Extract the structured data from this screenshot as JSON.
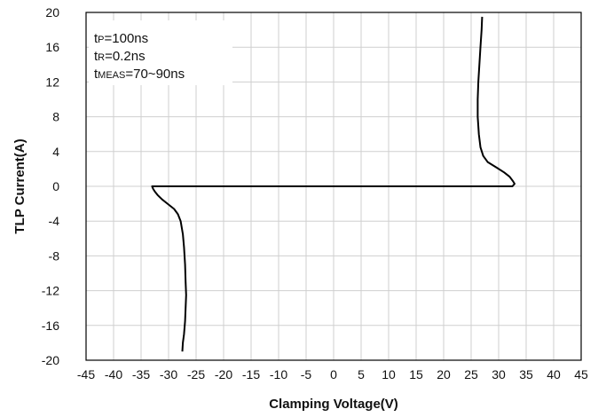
{
  "chart_data": {
    "type": "line",
    "xlabel": "Clamping Voltage(V)",
    "ylabel": "TLP Current(A)",
    "xlim": [
      -45,
      45
    ],
    "ylim": [
      -20,
      20
    ],
    "x_ticks": [
      -45,
      -40,
      -35,
      -30,
      -25,
      -20,
      -15,
      -10,
      -5,
      0,
      5,
      10,
      15,
      20,
      25,
      30,
      35,
      40,
      45
    ],
    "x_tick_labels": [
      "-45",
      "-40",
      "-35",
      "-30",
      "-25",
      "-20",
      "-15",
      "-10",
      "-5",
      "0",
      "5",
      "10",
      "15",
      "20",
      "25",
      "30",
      "35",
      "40",
      "45"
    ],
    "y_ticks": [
      -20,
      -16,
      -12,
      -8,
      -4,
      0,
      4,
      8,
      12,
      16,
      20
    ],
    "y_tick_labels": [
      "-20",
      "-16",
      "-12",
      "-8",
      "-4",
      "0",
      "4",
      "8",
      "12",
      "16",
      "20"
    ],
    "grid": true,
    "annotations": [
      {
        "prefix": "t",
        "sub": "P",
        "suffix": "=100ns"
      },
      {
        "prefix": "t",
        "sub": "R",
        "suffix": "=0.2ns"
      },
      {
        "prefix": "t",
        "sub": "MEAS",
        "suffix": "=70~90ns"
      }
    ],
    "series": [
      {
        "color": "#000000",
        "points": [
          [
            27.0,
            19.5
          ],
          [
            26.9,
            18.0
          ],
          [
            26.7,
            16.0
          ],
          [
            26.5,
            14.0
          ],
          [
            26.3,
            12.0
          ],
          [
            26.2,
            10.0
          ],
          [
            26.2,
            8.0
          ],
          [
            26.4,
            6.0
          ],
          [
            26.7,
            4.5
          ],
          [
            27.2,
            3.5
          ],
          [
            28.0,
            2.8
          ],
          [
            29.5,
            2.2
          ],
          [
            31.0,
            1.6
          ],
          [
            32.0,
            1.1
          ],
          [
            32.6,
            0.6
          ],
          [
            32.9,
            0.3
          ],
          [
            32.5,
            0.0
          ],
          [
            30.0,
            0.0
          ],
          [
            20.0,
            0.0
          ],
          [
            10.0,
            0.0
          ],
          [
            0.0,
            0.0
          ],
          [
            -10.0,
            0.0
          ],
          [
            -20.0,
            0.0
          ],
          [
            -30.0,
            0.0
          ],
          [
            -33.0,
            0.0
          ],
          [
            -32.8,
            -0.3
          ],
          [
            -32.5,
            -0.6
          ],
          [
            -32.0,
            -1.0
          ],
          [
            -31.2,
            -1.5
          ],
          [
            -30.2,
            -2.0
          ],
          [
            -29.0,
            -2.6
          ],
          [
            -28.3,
            -3.2
          ],
          [
            -27.8,
            -4.0
          ],
          [
            -27.4,
            -5.5
          ],
          [
            -27.2,
            -7.0
          ],
          [
            -27.0,
            -9.0
          ],
          [
            -26.9,
            -11.0
          ],
          [
            -26.8,
            -12.5
          ],
          [
            -26.9,
            -14.0
          ],
          [
            -27.0,
            -15.5
          ],
          [
            -27.2,
            -17.0
          ],
          [
            -27.4,
            -18.0
          ],
          [
            -27.5,
            -19.0
          ]
        ]
      }
    ]
  }
}
